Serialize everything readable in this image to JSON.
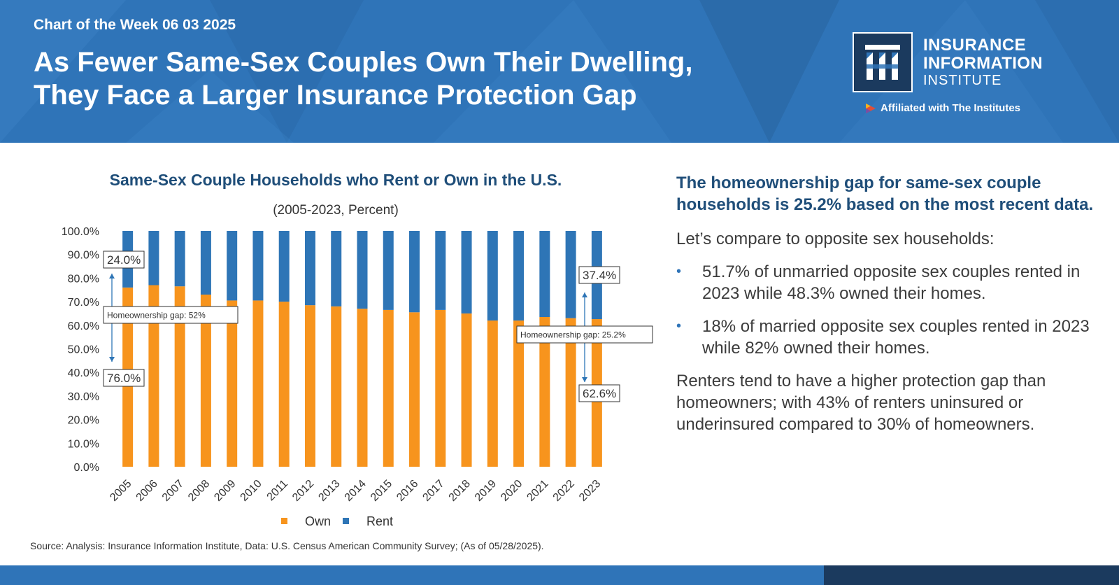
{
  "header": {
    "kicker": "Chart of the Week 06 03 2025",
    "headline_line1": "As Fewer Same-Sex Couples Own Their Dwelling,",
    "headline_line2": "They Face a Larger Insurance Protection Gap",
    "logo": {
      "line1": "INSURANCE",
      "line2": "INFORMATION",
      "line3": "INSTITUTE",
      "affiliated": "Affiliated with The Institutes"
    },
    "colors": {
      "background": "#2f74b8",
      "dark": "#1b3a5e"
    }
  },
  "chart_data": {
    "type": "bar",
    "stacked": true,
    "title": "Same-Sex Couple Households who Rent or Own in the U.S.",
    "subtitle": "(2005-2023, Percent)",
    "categories": [
      "2005",
      "2006",
      "2007",
      "2008",
      "2009",
      "2010",
      "2011",
      "2012",
      "2013",
      "2014",
      "2015",
      "2016",
      "2017",
      "2018",
      "2019",
      "2020",
      "2021",
      "2022",
      "2023"
    ],
    "series": [
      {
        "name": "Own",
        "color": "#f7941d",
        "values": [
          76.0,
          77.0,
          76.5,
          73.0,
          70.5,
          70.5,
          70.0,
          68.5,
          68.0,
          67.0,
          66.5,
          65.5,
          66.5,
          65.0,
          62.0,
          62.0,
          63.5,
          63.0,
          62.6
        ]
      },
      {
        "name": "Rent",
        "color": "#2e75b6",
        "values": [
          24.0,
          23.0,
          23.5,
          27.0,
          29.5,
          29.5,
          30.0,
          31.5,
          32.0,
          33.0,
          33.5,
          34.5,
          33.5,
          35.0,
          38.0,
          38.0,
          36.5,
          37.0,
          37.4
        ]
      }
    ],
    "ylim": [
      0,
      100
    ],
    "yticks": [
      0,
      10,
      20,
      30,
      40,
      50,
      60,
      70,
      80,
      90,
      100
    ],
    "ytick_labels": [
      "0.0%",
      "10.0%",
      "20.0%",
      "30.0%",
      "40.0%",
      "50.0%",
      "60.0%",
      "70.0%",
      "80.0%",
      "90.0%",
      "100.0%"
    ],
    "grid": false,
    "legend": "bottom",
    "annotations": [
      {
        "text": "24.0%"
      },
      {
        "text": "76.0%"
      },
      {
        "text": "Homeownership gap: 52%"
      },
      {
        "text": "37.4%"
      },
      {
        "text": "62.6%"
      },
      {
        "text": "Homeownership gap: 25.2%"
      }
    ]
  },
  "source": "Source: Analysis: Insurance Information Institute, Data: U.S. Census American Community Survey; (As of 05/28/2025).",
  "commentary": {
    "lead": "The homeownership gap for same-sex couple households is 25.2% based on the most recent data.",
    "intro": "Let’s compare to opposite sex households:",
    "bullets": [
      "51.7% of unmarried opposite sex couples rented in 2023 while 48.3% owned their homes.",
      "18% of married opposite sex couples rented in 2023 while 82% owned their homes."
    ],
    "closing": "Renters tend to have a higher protection gap than homeowners; with 43% of renters uninsured or underinsured compared to 30% of homeowners.",
    "bullet_glyph": "•"
  }
}
